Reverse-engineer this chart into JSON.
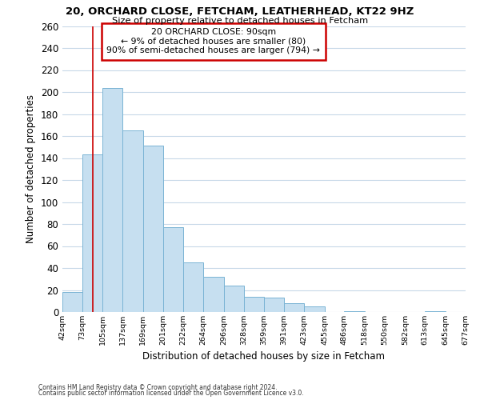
{
  "title": "20, ORCHARD CLOSE, FETCHAM, LEATHERHEAD, KT22 9HZ",
  "subtitle": "Size of property relative to detached houses in Fetcham",
  "xlabel": "Distribution of detached houses by size in Fetcham",
  "ylabel": "Number of detached properties",
  "bar_edges": [
    42,
    73,
    105,
    137,
    169,
    201,
    232,
    264,
    296,
    328,
    359,
    391,
    423,
    455,
    486,
    518,
    550,
    582,
    613,
    645,
    677
  ],
  "bar_heights": [
    18,
    143,
    204,
    165,
    151,
    77,
    45,
    32,
    24,
    14,
    13,
    8,
    5,
    0,
    1,
    0,
    0,
    0,
    1,
    0,
    1
  ],
  "bar_color": "#c6dff0",
  "bar_edge_color": "#7ab4d4",
  "reference_line_x": 90,
  "reference_line_color": "#cc0000",
  "ylim": [
    0,
    260
  ],
  "yticks": [
    0,
    20,
    40,
    60,
    80,
    100,
    120,
    140,
    160,
    180,
    200,
    220,
    240,
    260
  ],
  "annotation_title": "20 ORCHARD CLOSE: 90sqm",
  "annotation_line1": "← 9% of detached houses are smaller (80)",
  "annotation_line2": "90% of semi-detached houses are larger (794) →",
  "annotation_box_color": "#ffffff",
  "annotation_box_edge": "#cc0000",
  "footnote1": "Contains HM Land Registry data © Crown copyright and database right 2024.",
  "footnote2": "Contains public sector information licensed under the Open Government Licence v3.0.",
  "background_color": "#ffffff",
  "grid_color": "#c8d8e8"
}
